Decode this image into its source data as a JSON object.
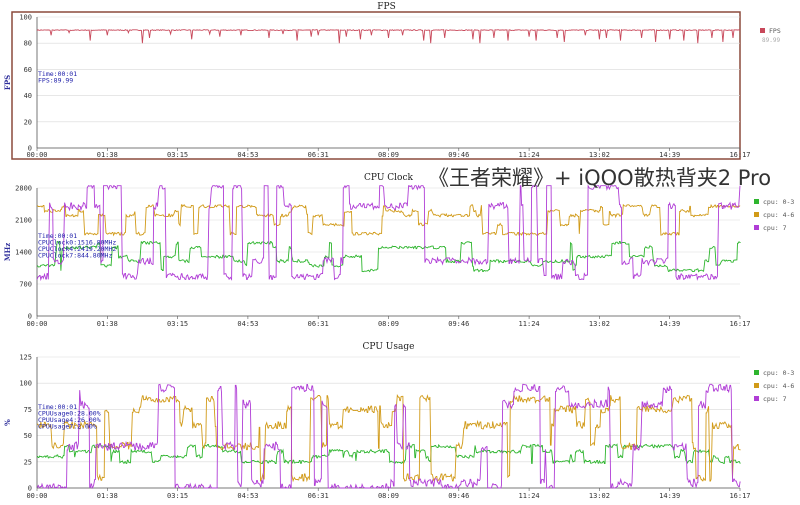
{
  "overlay_title": "《王者荣耀》+ iQOO散热背夹2 Pro",
  "colors": {
    "fps": "#c8485a",
    "cpu_0_3": "#2eb52e",
    "cpu_4_6": "#d19a18",
    "cpu_7": "#b03dd6",
    "frame": "#8b4a3c"
  },
  "chart_data": [
    {
      "type": "line",
      "title": "FPS",
      "ylabel": "FPS",
      "ylim": [
        0,
        100
      ],
      "y_ticks": [
        0,
        20,
        40,
        60,
        80,
        100
      ],
      "x_ticks": [
        "00:00",
        "01:38",
        "03:15",
        "04:53",
        "06:31",
        "08:09",
        "09:46",
        "11:24",
        "13:02",
        "14:39",
        "16:17"
      ],
      "legend_position": "right",
      "annotation": [
        "Time:00:01",
        "FPS:89.99"
      ],
      "series": [
        {
          "name": "FPS",
          "legend_value": "89.99",
          "baseline": 90,
          "dips": [
            [
              0.02,
              86
            ],
            [
              0.045,
              88
            ],
            [
              0.075,
              82
            ],
            [
              0.1,
              86
            ],
            [
              0.13,
              88
            ],
            [
              0.16,
              84
            ],
            [
              0.15,
              80
            ],
            [
              0.19,
              87
            ],
            [
              0.22,
              83
            ],
            [
              0.245,
              87
            ],
            [
              0.26,
              85
            ],
            [
              0.29,
              86
            ],
            [
              0.33,
              84
            ],
            [
              0.35,
              87
            ],
            [
              0.37,
              82
            ],
            [
              0.39,
              85
            ],
            [
              0.4,
              86
            ],
            [
              0.43,
              80
            ],
            [
              0.44,
              85
            ],
            [
              0.46,
              83
            ],
            [
              0.475,
              86
            ],
            [
              0.5,
              84
            ],
            [
              0.52,
              86
            ],
            [
              0.55,
              82
            ],
            [
              0.56,
              80
            ],
            [
              0.58,
              84
            ],
            [
              0.62,
              83
            ],
            [
              0.63,
              80
            ],
            [
              0.65,
              84
            ],
            [
              0.67,
              82
            ],
            [
              0.7,
              85
            ],
            [
              0.71,
              82
            ],
            [
              0.74,
              84
            ],
            [
              0.75,
              81
            ],
            [
              0.78,
              86
            ],
            [
              0.8,
              83
            ],
            [
              0.81,
              84
            ],
            [
              0.83,
              82
            ],
            [
              0.86,
              84
            ],
            [
              0.88,
              81
            ],
            [
              0.9,
              83
            ],
            [
              0.92,
              82
            ],
            [
              0.94,
              80
            ],
            [
              0.96,
              84
            ],
            [
              0.975,
              81
            ],
            [
              0.99,
              84
            ]
          ]
        }
      ]
    },
    {
      "type": "line",
      "title": "CPU Clock",
      "ylabel": "MHz",
      "ylim": [
        0,
        2800
      ],
      "y_ticks": [
        0,
        700,
        1400,
        2100,
        2800
      ],
      "x_ticks": [
        "00:00",
        "01:38",
        "03:15",
        "04:53",
        "06:31",
        "08:09",
        "09:46",
        "11:24",
        "13:02",
        "14:39",
        "16:17"
      ],
      "legend_position": "right",
      "annotation": [
        "Time:00:01",
        "CPUClock0:1516.80MHz",
        "CPUClock4:2419.20MHz",
        "CPUClock7:844.80MHz"
      ],
      "series": [
        {
          "name": "cpu: 0-3",
          "min": 900,
          "max": 1700,
          "levels": [
            1100,
            1300,
            1500,
            1600,
            1000,
            1200
          ]
        },
        {
          "name": "cpu: 4-6",
          "min": 1700,
          "max": 2500,
          "levels": [
            2400,
            2000,
            2200,
            1800,
            2300
          ]
        },
        {
          "name": "cpu: 7",
          "min": 800,
          "max": 2850,
          "levels": [
            850,
            2850,
            1200,
            2400
          ]
        }
      ]
    },
    {
      "type": "line",
      "title": "CPU Usage",
      "ylabel": "%",
      "ylim": [
        0,
        125
      ],
      "y_ticks": [
        0,
        25,
        50,
        75,
        100,
        125
      ],
      "x_ticks": [
        "00:00",
        "01:38",
        "03:15",
        "04:53",
        "06:31",
        "08:09",
        "09:46",
        "11:24",
        "13:02",
        "14:39",
        "16:17"
      ],
      "legend_position": "right",
      "annotation": [
        "Time:00:01",
        "CPUUsage0:28.00%",
        "CPUUsage4:26.00%",
        "CPUUsage7:2.00%"
      ],
      "series": [
        {
          "name": "cpu: 0-3",
          "min": 15,
          "max": 55,
          "levels": [
            30,
            35,
            40,
            25
          ]
        },
        {
          "name": "cpu: 4-6",
          "min": 0,
          "max": 90,
          "levels": [
            60,
            75,
            10,
            40,
            85
          ]
        },
        {
          "name": "cpu: 7",
          "min": 0,
          "max": 100,
          "levels": [
            0,
            80,
            95,
            40,
            5
          ]
        }
      ]
    }
  ]
}
